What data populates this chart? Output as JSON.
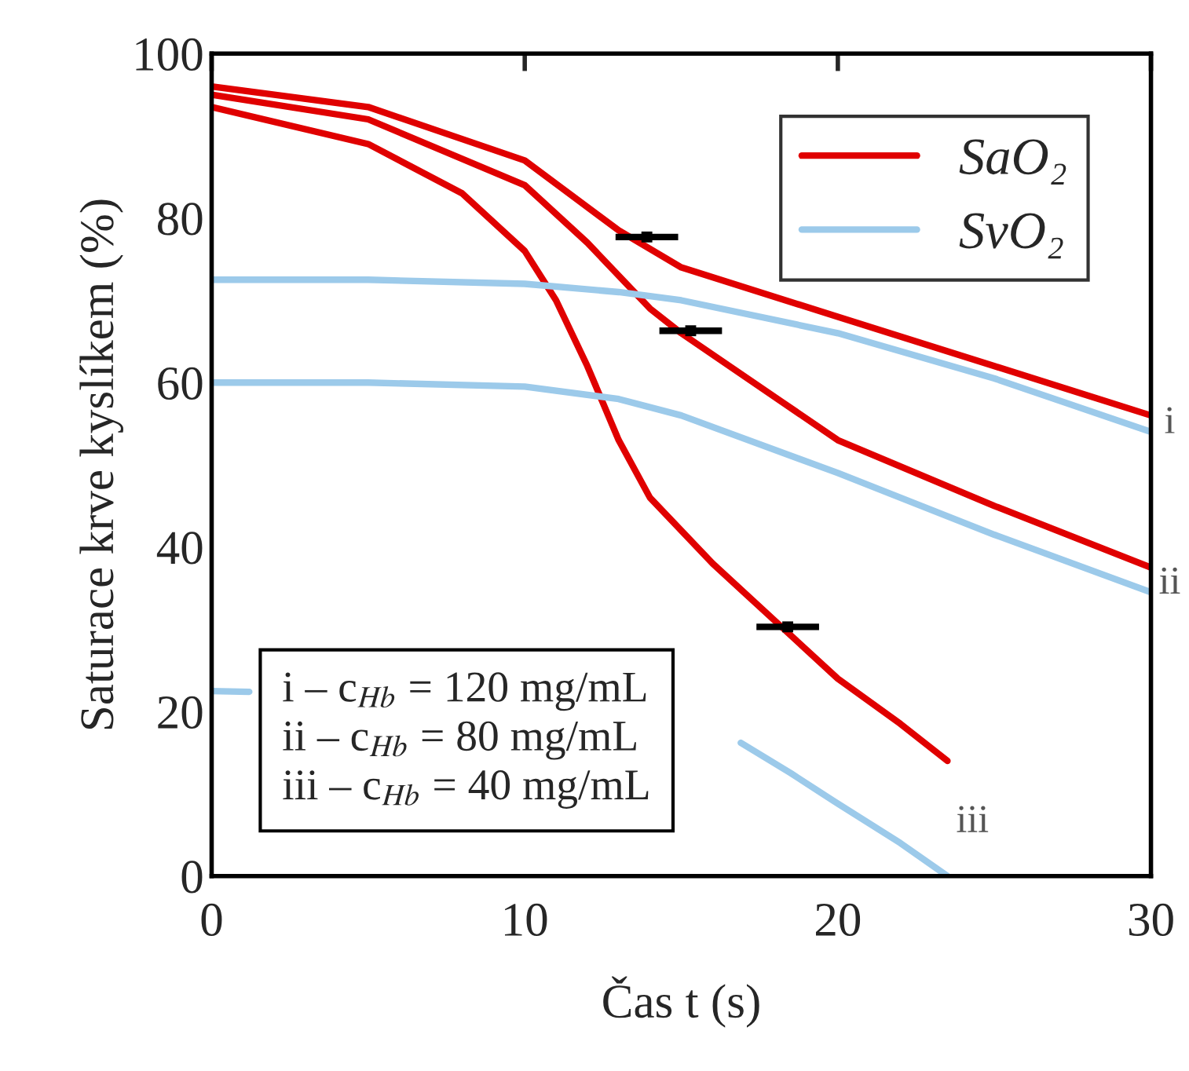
{
  "chart_data": {
    "type": "line",
    "xlabel": "Čas t (s)",
    "ylabel": "Saturace krve kyslíkem (%)",
    "xlim": [
      0,
      30
    ],
    "ylim": [
      0,
      100
    ],
    "xticks": [
      0,
      10,
      20,
      30
    ],
    "yticks": [
      0,
      20,
      40,
      60,
      80,
      100
    ],
    "grid": false,
    "legend": "top right",
    "series": [
      {
        "name": "SaO₂",
        "color": "#e00000",
        "x": [
          0,
          5,
          10,
          13,
          15,
          20,
          25,
          30
        ],
        "values": [
          96,
          93.5,
          87,
          78.5,
          74,
          68,
          62,
          56
        ]
      },
      {
        "color": "#e00000",
        "x": [
          0,
          5,
          10,
          12,
          14,
          15,
          20,
          25,
          30
        ],
        "values": [
          95,
          92,
          84,
          77,
          69,
          66,
          53,
          45,
          37.5
        ]
      },
      {
        "color": "#e00000",
        "x": [
          0,
          5,
          8,
          10,
          11,
          12,
          13,
          14,
          16,
          18,
          20,
          22,
          23.5
        ],
        "values": [
          93.5,
          89,
          83,
          76,
          70,
          62,
          53,
          46,
          38,
          31,
          24,
          18.5,
          14
        ]
      },
      {
        "name": "SvO₂",
        "color": "#9ccaea",
        "x": [
          0,
          5,
          10,
          13,
          15,
          20,
          25,
          30
        ],
        "values": [
          72.5,
          72.5,
          72,
          71,
          70,
          66,
          60.5,
          54
        ]
      },
      {
        "color": "#9ccaea",
        "x": [
          0,
          5,
          10,
          13,
          15,
          20,
          25,
          30
        ],
        "values": [
          60,
          60,
          59.5,
          58,
          56,
          49,
          41.5,
          34.5
        ]
      },
      {
        "color": "#9ccaea",
        "x": [
          0,
          1.2,
          9,
          16.9,
          18.5,
          20,
          22,
          23.5
        ],
        "values": [
          22.5,
          22.4,
          null,
          16.2,
          12.5,
          8.8,
          4,
          0
        ]
      },
      {
        "type": "scatter",
        "color": "#000000",
        "marker": "square",
        "x": [
          13.9,
          15.3,
          18.4
        ],
        "values": [
          77.7,
          66.3,
          30.3
        ],
        "xerrors": [
          1,
          1,
          1
        ]
      }
    ],
    "annotations": [
      "i",
      "ii",
      "iii",
      "i – c$_{Hb}$ = 120 mg/mL\nii – c$_{Hb}$ = 80 mg/mL\niii – c$_{Hb}$ = 40 mg/mL"
    ]
  }
}
